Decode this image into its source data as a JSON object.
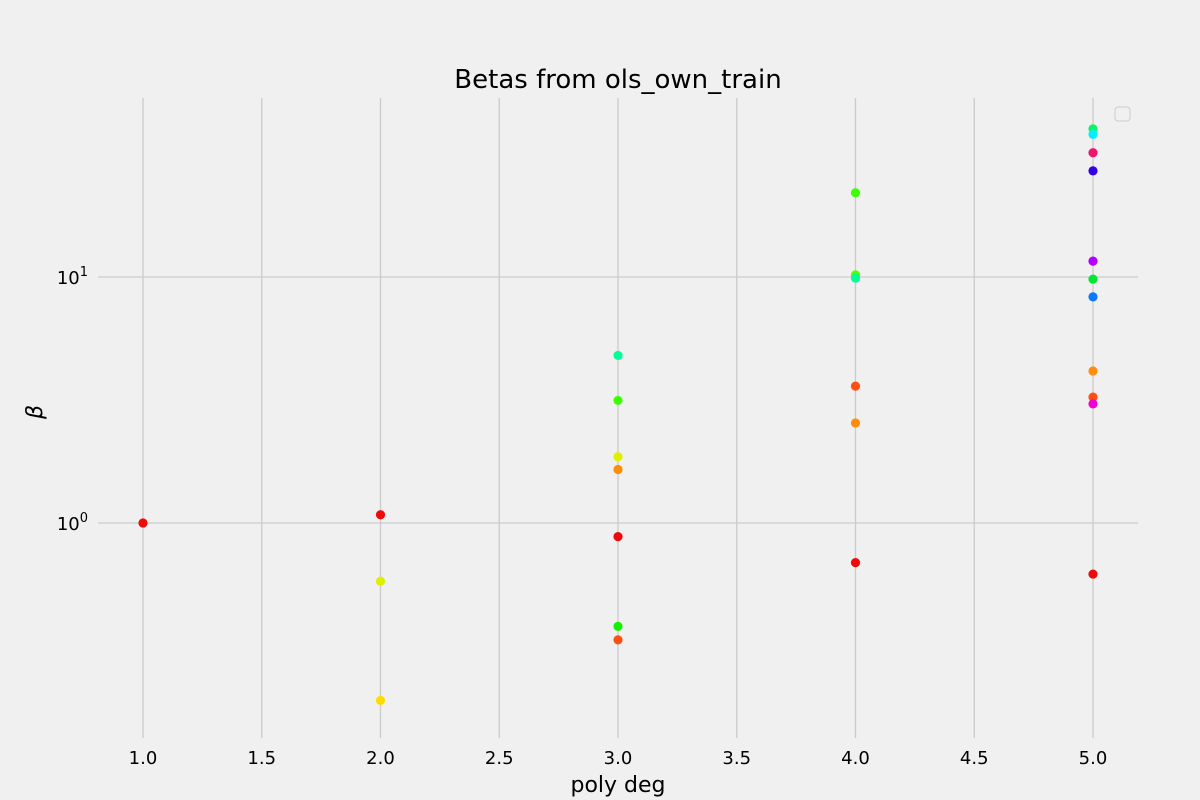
{
  "chart_data": {
    "type": "scatter",
    "title": "Betas from ols_own_train",
    "xlabel": "poly deg",
    "ylabel": "β",
    "y_scale": "log",
    "xlim": [
      0.8,
      5.19
    ],
    "ylim": [
      0.18,
      60
    ],
    "grid": true,
    "legend": "top-right (empty box)",
    "background_color": "#f0f0f0",
    "grid_color": "#cbcbcb",
    "x_ticks": [
      "1.0",
      "1.5",
      "2.0",
      "2.5",
      "3.0",
      "3.5",
      "4.0",
      "4.5",
      "5.0"
    ],
    "y_ticks": [
      {
        "value": 1,
        "base": "10",
        "exp": "0"
      },
      {
        "value": 10,
        "base": "10",
        "exp": "1"
      }
    ],
    "points": [
      {
        "x": 1,
        "y": 1.0,
        "color": "#ee0a0a"
      },
      {
        "x": 2,
        "y": 1.08,
        "color": "#ee0a0a"
      },
      {
        "x": 2,
        "y": 0.58,
        "color": "#dcf000"
      },
      {
        "x": 2,
        "y": 0.19,
        "color": "#ffdc00"
      },
      {
        "x": 3,
        "y": 4.8,
        "color": "#00ff96"
      },
      {
        "x": 3,
        "y": 3.15,
        "color": "#3cff00"
      },
      {
        "x": 3,
        "y": 1.86,
        "color": "#dcf000"
      },
      {
        "x": 3,
        "y": 1.65,
        "color": "#ff8c0a"
      },
      {
        "x": 3,
        "y": 0.88,
        "color": "#ee0a0a"
      },
      {
        "x": 3,
        "y": 0.38,
        "color": "#14f000"
      },
      {
        "x": 3,
        "y": 0.335,
        "color": "#ff5014"
      },
      {
        "x": 4,
        "y": 22.0,
        "color": "#3cff00"
      },
      {
        "x": 4,
        "y": 10.2,
        "color": "#50ff00"
      },
      {
        "x": 4,
        "y": 9.9,
        "color": "#00ff96"
      },
      {
        "x": 4,
        "y": 3.6,
        "color": "#ff5014"
      },
      {
        "x": 4,
        "y": 2.55,
        "color": "#ff8c0a"
      },
      {
        "x": 4,
        "y": 0.69,
        "color": "#ee0a0a"
      },
      {
        "x": 5,
        "y": 40.0,
        "color": "#14f064"
      },
      {
        "x": 5,
        "y": 38.0,
        "color": "#00f0ff"
      },
      {
        "x": 5,
        "y": 32.0,
        "color": "#f0146e"
      },
      {
        "x": 5,
        "y": 27.0,
        "color": "#3200e6"
      },
      {
        "x": 5,
        "y": 11.6,
        "color": "#b400ff"
      },
      {
        "x": 5,
        "y": 9.8,
        "color": "#00e632"
      },
      {
        "x": 5,
        "y": 8.3,
        "color": "#0a78ff"
      },
      {
        "x": 5,
        "y": 4.15,
        "color": "#ff8c0a"
      },
      {
        "x": 5,
        "y": 3.25,
        "color": "#ff5014"
      },
      {
        "x": 5,
        "y": 3.05,
        "color": "#f000d2"
      },
      {
        "x": 5,
        "y": 0.62,
        "color": "#ee0a0a"
      }
    ]
  }
}
